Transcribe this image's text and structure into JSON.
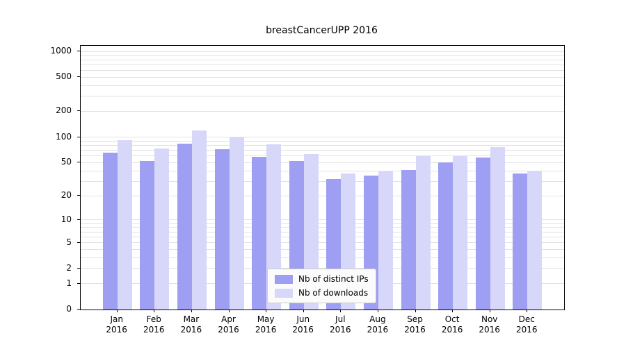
{
  "chart_data": {
    "type": "bar",
    "title": "breastCancerUPP 2016",
    "categories": [
      "Jan",
      "Feb",
      "Mar",
      "Apr",
      "May",
      "Jun",
      "Jul",
      "Aug",
      "Sep",
      "Oct",
      "Nov",
      "Dec"
    ],
    "year_label": "2016",
    "series": [
      {
        "name": "Nb of distinct IPs",
        "color": "#9e9ef2",
        "values": [
          65,
          52,
          83,
          72,
          59,
          52,
          32,
          35,
          41,
          50,
          57,
          37
        ]
      },
      {
        "name": "Nb of downloads",
        "color": "#d7d7f9",
        "values": [
          92,
          73,
          120,
          100,
          82,
          63,
          37,
          39,
          60,
          60,
          76,
          39
        ]
      }
    ],
    "yscale": "log1p",
    "yticks": [
      0,
      1,
      2,
      5,
      10,
      20,
      50,
      100,
      200,
      500,
      1000
    ],
    "gridlines": [
      1,
      2,
      3,
      4,
      5,
      6,
      7,
      8,
      9,
      10,
      20,
      30,
      40,
      50,
      60,
      70,
      80,
      90,
      100,
      200,
      300,
      400,
      500,
      600,
      700,
      800,
      900,
      1000
    ],
    "ylim": [
      0,
      1160
    ],
    "grid": true,
    "legend_position": "lower center"
  }
}
